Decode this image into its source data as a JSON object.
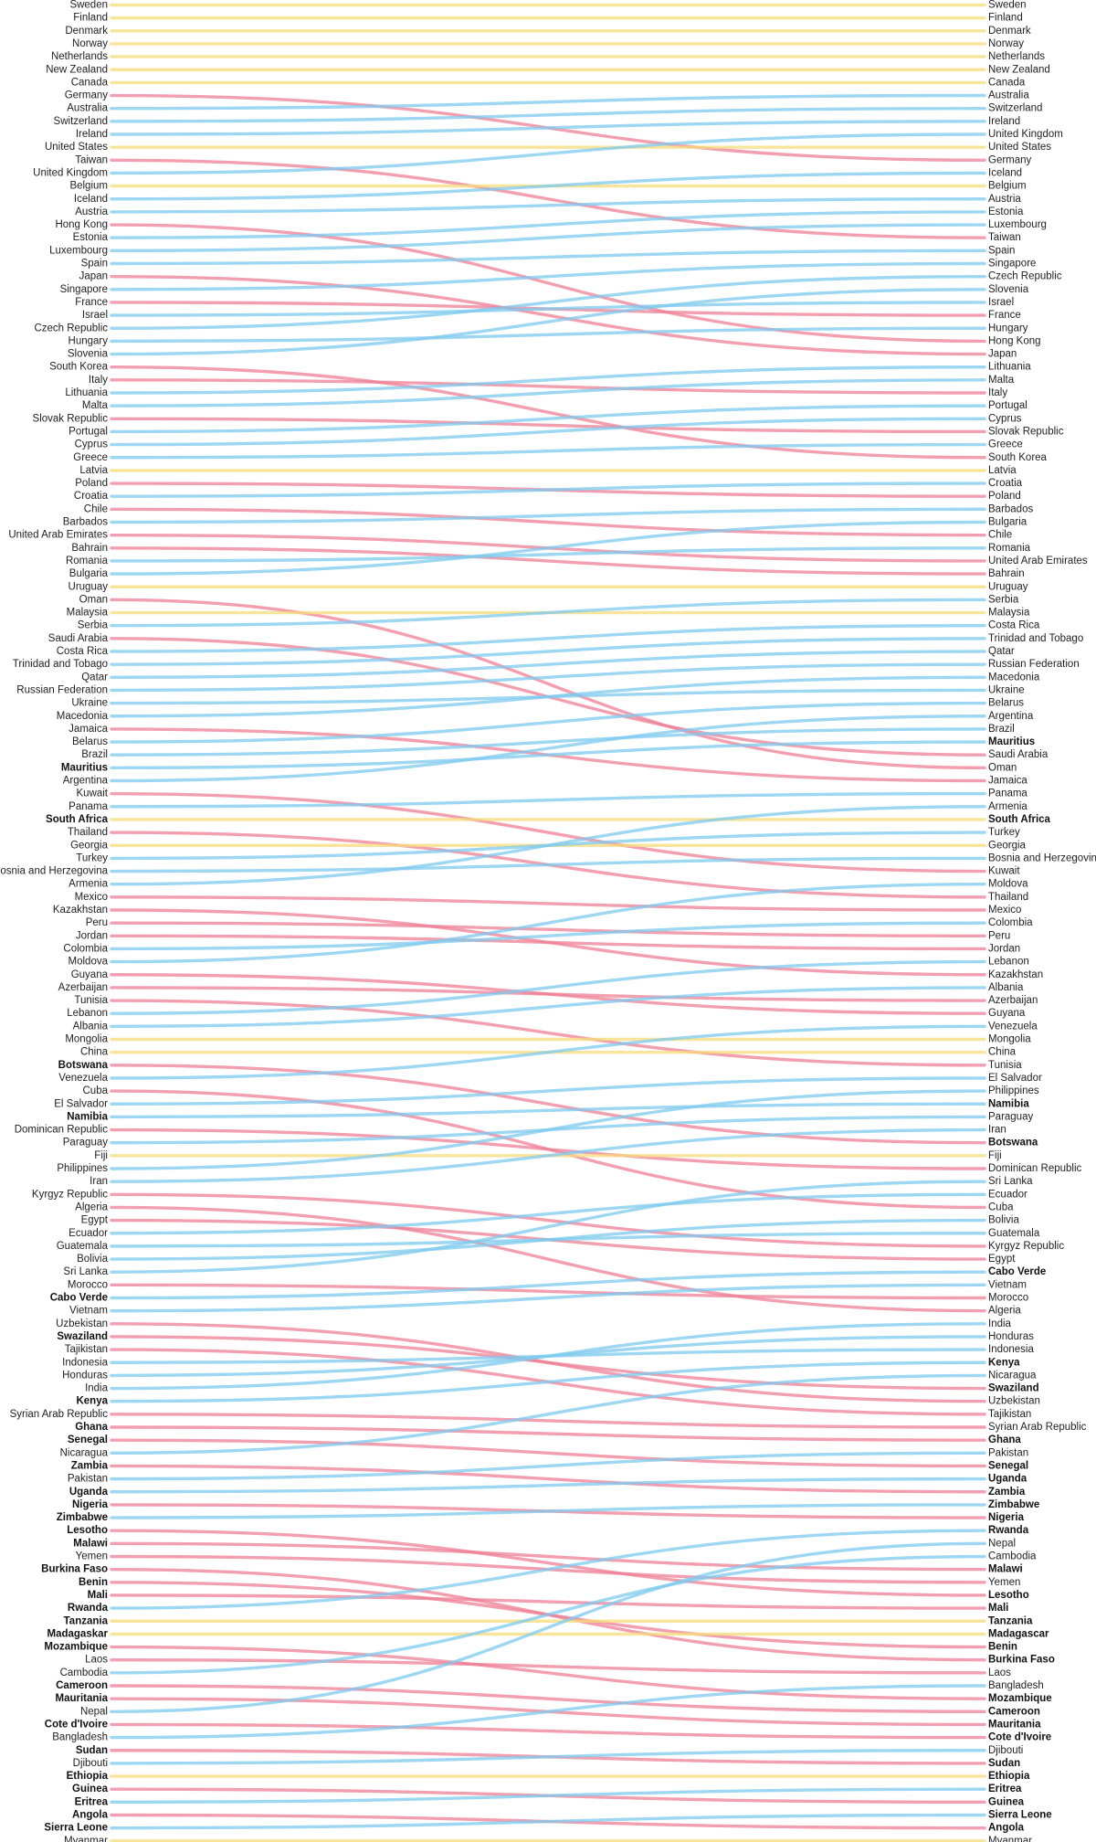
{
  "chart_data": {
    "type": "slope",
    "colors": {
      "up": "#7ec9ee",
      "down": "#ee7f95",
      "same": "#f6dc7a"
    },
    "bold": [
      "South Africa",
      "Mauritius",
      "Botswana",
      "Namibia",
      "Cabo Verde",
      "Swaziland",
      "Kenya",
      "Ghana",
      "Senegal",
      "Zambia",
      "Uganda",
      "Nigeria",
      "Zimbabwe",
      "Lesotho",
      "Malawi",
      "Burkina Faso",
      "Benin",
      "Mali",
      "Rwanda",
      "Tanzania",
      "Madagaskar",
      "Madagascar",
      "Mozambique",
      "Cameroon",
      "Mauritania",
      "Cote d'Ivoire",
      "Sudan",
      "Ethiopia",
      "Guinea",
      "Eritrea",
      "Angola",
      "Sierra Leone"
    ],
    "left": [
      "Sweden",
      "Finland",
      "Denmark",
      "Norway",
      "Netherlands",
      "New Zealand",
      "Canada",
      "Germany",
      "Australia",
      "Switzerland",
      "Ireland",
      "United States",
      "Taiwan",
      "United Kingdom",
      "Belgium",
      "Iceland",
      "Austria",
      "Hong Kong",
      "Estonia",
      "Luxembourg",
      "Spain",
      "Japan",
      "Singapore",
      "France",
      "Israel",
      "Czech Republic",
      "Hungary",
      "Slovenia",
      "South Korea",
      "Italy",
      "Lithuania",
      "Malta",
      "Slovak Republic",
      "Portugal",
      "Cyprus",
      "Greece",
      "Latvia",
      "Poland",
      "Croatia",
      "Chile",
      "Barbados",
      "United Arab Emirates",
      "Bahrain",
      "Romania",
      "Bulgaria",
      "Uruguay",
      "Oman",
      "Malaysia",
      "Serbia",
      "Saudi Arabia",
      "Costa Rica",
      "Trinidad and Tobago",
      "Qatar",
      "Russian Federation",
      "Ukraine",
      "Macedonia",
      "Jamaica",
      "Belarus",
      "Brazil",
      "Mauritius",
      "Argentina",
      "Kuwait",
      "Panama",
      "South Africa",
      "Thailand",
      "Georgia",
      "Turkey",
      "Bosnia and Herzegovina",
      "Armenia",
      "Mexico",
      "Kazakhstan",
      "Peru",
      "Jordan",
      "Colombia",
      "Moldova",
      "Guyana",
      "Azerbaijan",
      "Tunisia",
      "Lebanon",
      "Albania",
      "Mongolia",
      "China",
      "Botswana",
      "Venezuela",
      "Cuba",
      "El Salvador",
      "Namibia",
      "Dominican Republic",
      "Paraguay",
      "Fiji",
      "Philippines",
      "Iran",
      "Kyrgyz Republic",
      "Algeria",
      "Egypt",
      "Ecuador",
      "Guatemala",
      "Bolivia",
      "Sri Lanka",
      "Morocco",
      "Cabo Verde",
      "Vietnam",
      "Uzbekistan",
      "Swaziland",
      "Tajikistan",
      "Indonesia",
      "Honduras",
      "India",
      "Kenya",
      "Syrian Arab Republic",
      "Ghana",
      "Senegal",
      "Nicaragua",
      "Zambia",
      "Pakistan",
      "Uganda",
      "Nigeria",
      "Zimbabwe",
      "Lesotho",
      "Malawi",
      "Yemen",
      "Burkina Faso",
      "Benin",
      "Mali",
      "Rwanda",
      "Tanzania",
      "Madagaskar",
      "Mozambique",
      "Laos",
      "Cambodia",
      "Cameroon",
      "Mauritania",
      "Nepal",
      "Cote d'Ivoire",
      "Bangladesh",
      "Sudan",
      "Djibouti",
      "Ethiopia",
      "Guinea",
      "Eritrea",
      "Angola",
      "Sierra Leone",
      "Myanmar"
    ],
    "right": [
      "Sweden",
      "Finland",
      "Denmark",
      "Norway",
      "Netherlands",
      "New Zealand",
      "Canada",
      "Australia",
      "Switzerland",
      "Ireland",
      "United Kingdom",
      "United States",
      "Germany",
      "Iceland",
      "Belgium",
      "Austria",
      "Estonia",
      "Luxembourg",
      "Taiwan",
      "Spain",
      "Singapore",
      "Czech Republic",
      "Slovenia",
      "Israel",
      "France",
      "Hungary",
      "Hong Kong",
      "Japan",
      "Lithuania",
      "Malta",
      "Italy",
      "Portugal",
      "Cyprus",
      "Slovak Republic",
      "Greece",
      "South Korea",
      "Latvia",
      "Croatia",
      "Poland",
      "Barbados",
      "Bulgaria",
      "Chile",
      "Romania",
      "United Arab Emirates",
      "Bahrain",
      "Uruguay",
      "Serbia",
      "Malaysia",
      "Costa Rica",
      "Trinidad and Tobago",
      "Qatar",
      "Russian Federation",
      "Macedonia",
      "Ukraine",
      "Belarus",
      "Argentina",
      "Brazil",
      "Mauritius",
      "Saudi Arabia",
      "Oman",
      "Jamaica",
      "Panama",
      "Armenia",
      "South Africa",
      "Turkey",
      "Georgia",
      "Bosnia and Herzegovina",
      "Kuwait",
      "Moldova",
      "Thailand",
      "Mexico",
      "Colombia",
      "Peru",
      "Jordan",
      "Lebanon",
      "Kazakhstan",
      "Albania",
      "Azerbaijan",
      "Guyana",
      "Venezuela",
      "Mongolia",
      "China",
      "Tunisia",
      "El Salvador",
      "Philippines",
      "Namibia",
      "Paraguay",
      "Iran",
      "Botswana",
      "Fiji",
      "Dominican Republic",
      "Sri Lanka",
      "Ecuador",
      "Cuba",
      "Bolivia",
      "Guatemala",
      "Kyrgyz Republic",
      "Egypt",
      "Cabo Verde",
      "Vietnam",
      "Morocco",
      "Algeria",
      "India",
      "Honduras",
      "Indonesia",
      "Kenya",
      "Nicaragua",
      "Swaziland",
      "Uzbekistan",
      "Tajikistan",
      "Syrian Arab Republic",
      "Ghana",
      "Pakistan",
      "Senegal",
      "Uganda",
      "Zambia",
      "Zimbabwe",
      "Nigeria",
      "Rwanda",
      "Nepal",
      "Cambodia",
      "Malawi",
      "Yemen",
      "Lesotho",
      "Mali",
      "Tanzania",
      "Madagascar",
      "Benin",
      "Burkina Faso",
      "Laos",
      "Bangladesh",
      "Mozambique",
      "Cameroon",
      "Mauritania",
      "Cote d'Ivoire",
      "Djibouti",
      "Sudan",
      "Ethiopia",
      "Eritrea",
      "Guinea",
      "Sierra Leone",
      "Angola",
      "Myanmar"
    ]
  }
}
